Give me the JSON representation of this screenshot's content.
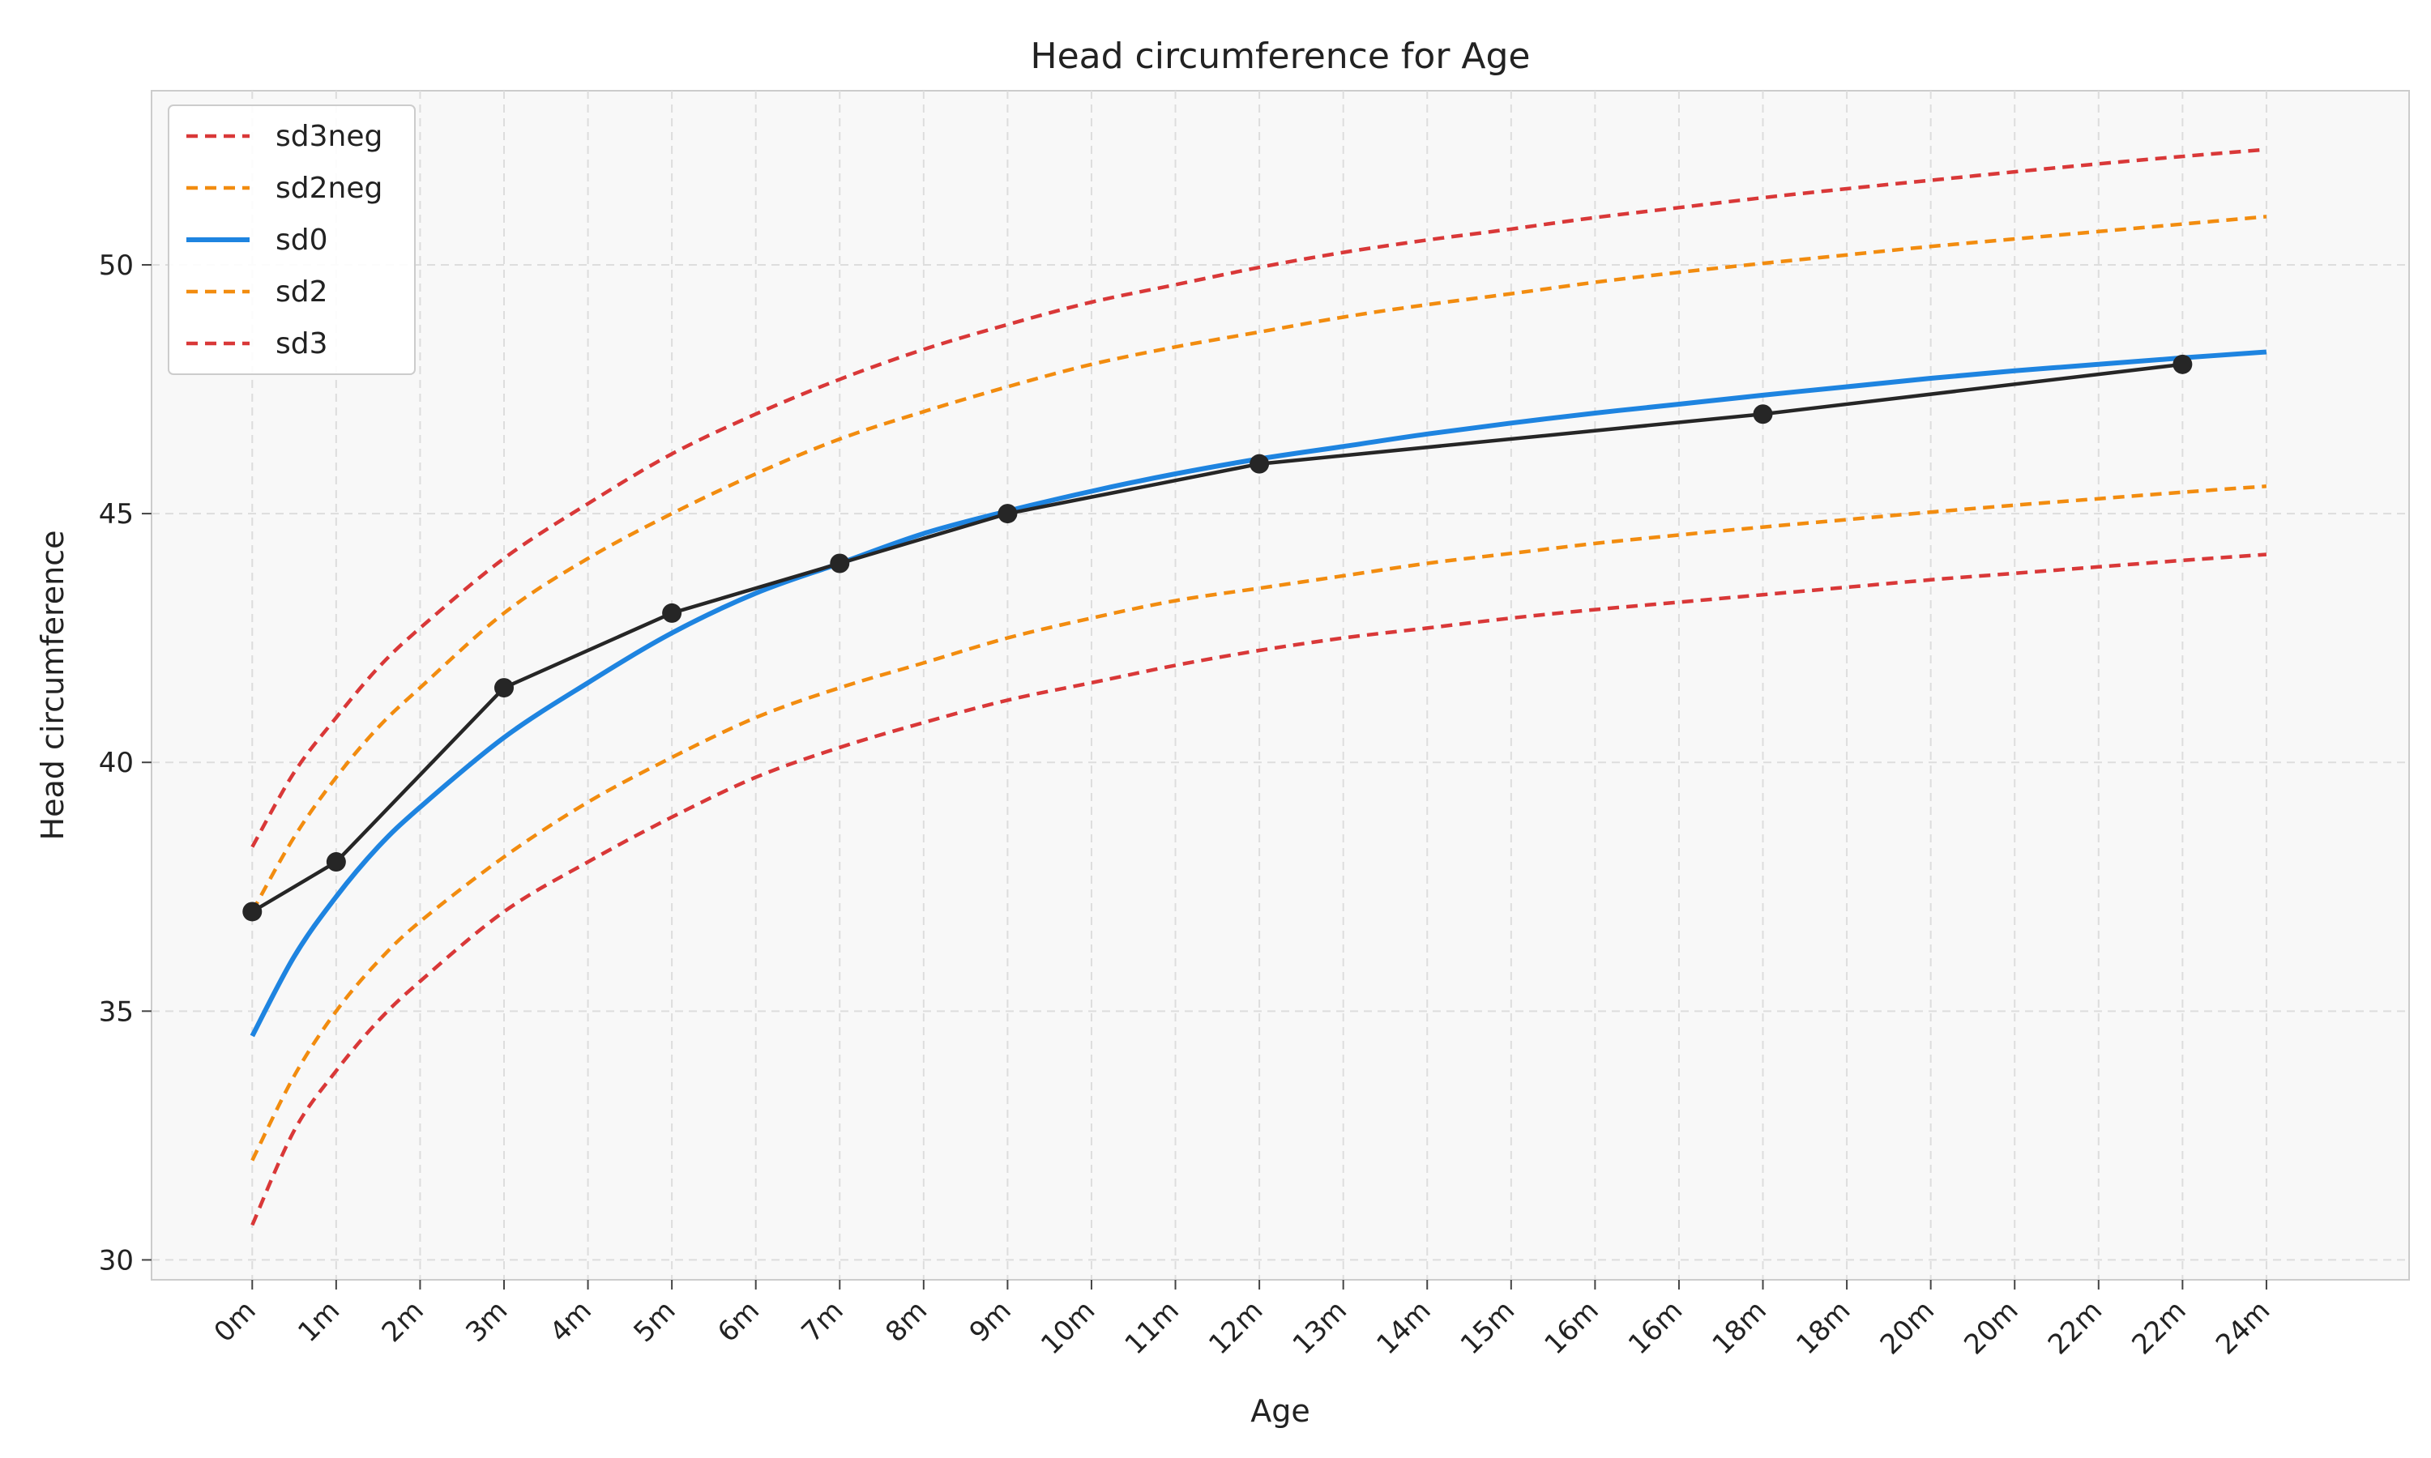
{
  "chart_data": {
    "type": "line",
    "title": "Head circumference for Age",
    "xlabel": "Age",
    "ylabel": "Head circumference",
    "x_tick_labels": [
      "0m",
      "1m",
      "2m",
      "3m",
      "4m",
      "5m",
      "6m",
      "7m",
      "8m",
      "9m",
      "10m",
      "11m",
      "12m",
      "13m",
      "14m",
      "15m",
      "16m",
      "16m",
      "18m",
      "18m",
      "20m",
      "20m",
      "22m",
      "22m",
      "24m"
    ],
    "xlim": [
      -1.2,
      25.7
    ],
    "ylim": [
      29.6,
      53.5
    ],
    "yticks": [
      30,
      35,
      40,
      45,
      50
    ],
    "grid": true,
    "legend_position": "top-left",
    "x": [
      0,
      0.5,
      1,
      1.5,
      2,
      3,
      4,
      5,
      6,
      7,
      8,
      9,
      10,
      11,
      12,
      13,
      14,
      15,
      16,
      17,
      18,
      19,
      20,
      21,
      22,
      23,
      24
    ],
    "series": [
      {
        "name": "sd3neg",
        "style": "dashed",
        "color": "#d93838",
        "values": [
          30.7,
          32.6,
          33.8,
          34.8,
          35.6,
          37.0,
          38.0,
          38.9,
          39.7,
          40.3,
          40.8,
          41.25,
          41.6,
          41.95,
          42.25,
          42.5,
          42.7,
          42.9,
          43.07,
          43.22,
          43.37,
          43.52,
          43.67,
          43.8,
          43.93,
          44.06,
          44.18
        ]
      },
      {
        "name": "sd2neg",
        "style": "dashed",
        "color": "#f28c0f",
        "values": [
          32.0,
          33.7,
          35.0,
          36.0,
          36.8,
          38.1,
          39.2,
          40.1,
          40.9,
          41.5,
          42.0,
          42.5,
          42.9,
          43.25,
          43.5,
          43.75,
          44.0,
          44.2,
          44.4,
          44.57,
          44.73,
          44.88,
          45.03,
          45.17,
          45.3,
          45.43,
          45.55
        ]
      },
      {
        "name": "sd0",
        "style": "solid",
        "color": "#1e84e0",
        "values": [
          34.5,
          36.1,
          37.3,
          38.3,
          39.1,
          40.5,
          41.6,
          42.6,
          43.4,
          44.0,
          44.6,
          45.05,
          45.45,
          45.8,
          46.1,
          46.35,
          46.6,
          46.82,
          47.02,
          47.2,
          47.38,
          47.55,
          47.72,
          47.87,
          48.0,
          48.13,
          48.25
        ]
      },
      {
        "name": "sd2",
        "style": "dashed",
        "color": "#f28c0f",
        "values": [
          37.0,
          38.5,
          39.7,
          40.7,
          41.5,
          43.0,
          44.1,
          45.0,
          45.8,
          46.5,
          47.05,
          47.55,
          48.0,
          48.35,
          48.65,
          48.95,
          49.2,
          49.42,
          49.65,
          49.85,
          50.03,
          50.2,
          50.37,
          50.52,
          50.67,
          50.82,
          50.97
        ]
      },
      {
        "name": "sd3",
        "style": "dashed",
        "color": "#d93838",
        "values": [
          38.3,
          39.8,
          40.9,
          41.9,
          42.7,
          44.1,
          45.2,
          46.2,
          47.0,
          47.7,
          48.3,
          48.8,
          49.25,
          49.6,
          49.95,
          50.25,
          50.5,
          50.72,
          50.95,
          51.15,
          51.35,
          51.53,
          51.7,
          51.87,
          52.03,
          52.18,
          52.32
        ]
      }
    ],
    "measurements": {
      "color": "#262626",
      "x": [
        0,
        1,
        3,
        5,
        7,
        9,
        12,
        18,
        23
      ],
      "y": [
        37,
        38,
        41.5,
        43,
        44,
        45,
        46,
        47,
        48
      ]
    }
  }
}
